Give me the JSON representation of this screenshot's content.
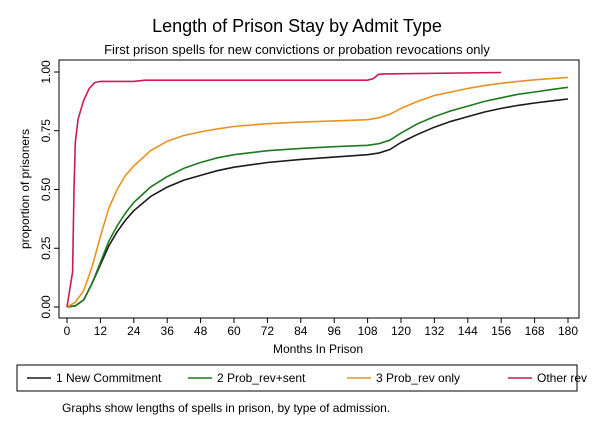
{
  "chart_data": {
    "type": "line",
    "title": "Length of Prison Stay by Admit Type",
    "subtitle": "First prison spells for new convictions or probation revocations only",
    "xlabel": "Months In Prison",
    "ylabel": "proportion of prisoners",
    "xlim": [
      0,
      180
    ],
    "ylim": [
      0,
      1
    ],
    "xticks": [
      0,
      12,
      24,
      36,
      48,
      60,
      72,
      84,
      96,
      108,
      120,
      132,
      144,
      156,
      168,
      180
    ],
    "yticks": [
      0,
      0.25,
      0.5,
      0.75,
      1
    ],
    "ytick_labels": [
      "0.00",
      "0.25",
      "0.50",
      "0.75",
      "1.00"
    ],
    "grid": false,
    "legend_position": "bottom",
    "note": "Graphs show lengths of spells in prison, by type of admission.",
    "series": [
      {
        "name": "1 New Commitment",
        "color": "#1a1a1a",
        "points": [
          [
            0,
            0
          ],
          [
            3,
            0.005
          ],
          [
            6,
            0.03
          ],
          [
            9,
            0.1
          ],
          [
            12,
            0.18
          ],
          [
            15,
            0.26
          ],
          [
            18,
            0.32
          ],
          [
            21,
            0.37
          ],
          [
            24,
            0.41
          ],
          [
            30,
            0.47
          ],
          [
            36,
            0.51
          ],
          [
            42,
            0.54
          ],
          [
            48,
            0.56
          ],
          [
            54,
            0.58
          ],
          [
            60,
            0.595
          ],
          [
            72,
            0.615
          ],
          [
            84,
            0.628
          ],
          [
            96,
            0.638
          ],
          [
            108,
            0.648
          ],
          [
            112,
            0.655
          ],
          [
            116,
            0.67
          ],
          [
            120,
            0.7
          ],
          [
            126,
            0.735
          ],
          [
            132,
            0.765
          ],
          [
            138,
            0.79
          ],
          [
            144,
            0.81
          ],
          [
            150,
            0.83
          ],
          [
            156,
            0.845
          ],
          [
            162,
            0.858
          ],
          [
            168,
            0.868
          ],
          [
            174,
            0.877
          ],
          [
            180,
            0.885
          ]
        ]
      },
      {
        "name": "2 Prob_rev+sent",
        "color": "#1f7a1f",
        "points": [
          [
            0,
            0
          ],
          [
            3,
            0.005
          ],
          [
            6,
            0.03
          ],
          [
            9,
            0.1
          ],
          [
            12,
            0.19
          ],
          [
            15,
            0.28
          ],
          [
            18,
            0.345
          ],
          [
            21,
            0.4
          ],
          [
            24,
            0.445
          ],
          [
            30,
            0.51
          ],
          [
            36,
            0.555
          ],
          [
            42,
            0.59
          ],
          [
            48,
            0.615
          ],
          [
            54,
            0.635
          ],
          [
            60,
            0.648
          ],
          [
            72,
            0.665
          ],
          [
            84,
            0.675
          ],
          [
            96,
            0.682
          ],
          [
            108,
            0.688
          ],
          [
            112,
            0.695
          ],
          [
            116,
            0.71
          ],
          [
            120,
            0.74
          ],
          [
            126,
            0.78
          ],
          [
            132,
            0.81
          ],
          [
            138,
            0.835
          ],
          [
            144,
            0.855
          ],
          [
            150,
            0.875
          ],
          [
            156,
            0.89
          ],
          [
            162,
            0.905
          ],
          [
            168,
            0.915
          ],
          [
            174,
            0.925
          ],
          [
            180,
            0.935
          ]
        ]
      },
      {
        "name": "3 Prob_rev only",
        "color": "#e8921e",
        "points": [
          [
            0,
            0
          ],
          [
            3,
            0.02
          ],
          [
            6,
            0.07
          ],
          [
            9,
            0.17
          ],
          [
            12,
            0.3
          ],
          [
            15,
            0.42
          ],
          [
            18,
            0.5
          ],
          [
            21,
            0.56
          ],
          [
            24,
            0.6
          ],
          [
            30,
            0.665
          ],
          [
            36,
            0.705
          ],
          [
            42,
            0.73
          ],
          [
            48,
            0.745
          ],
          [
            54,
            0.758
          ],
          [
            60,
            0.768
          ],
          [
            72,
            0.78
          ],
          [
            84,
            0.787
          ],
          [
            96,
            0.792
          ],
          [
            108,
            0.797
          ],
          [
            112,
            0.805
          ],
          [
            116,
            0.82
          ],
          [
            120,
            0.845
          ],
          [
            126,
            0.875
          ],
          [
            132,
            0.9
          ],
          [
            138,
            0.915
          ],
          [
            144,
            0.93
          ],
          [
            150,
            0.942
          ],
          [
            156,
            0.952
          ],
          [
            162,
            0.96
          ],
          [
            168,
            0.967
          ],
          [
            174,
            0.972
          ],
          [
            180,
            0.977
          ]
        ]
      },
      {
        "name": "Other rev",
        "color": "#cc1a52",
        "points": [
          [
            0,
            0
          ],
          [
            2,
            0.15
          ],
          [
            2.5,
            0.5
          ],
          [
            3,
            0.7
          ],
          [
            4,
            0.8
          ],
          [
            6,
            0.88
          ],
          [
            8,
            0.93
          ],
          [
            10,
            0.955
          ],
          [
            12,
            0.96
          ],
          [
            24,
            0.96
          ],
          [
            28,
            0.965
          ],
          [
            108,
            0.965
          ],
          [
            110,
            0.972
          ],
          [
            112,
            0.99
          ],
          [
            114,
            0.992
          ],
          [
            156,
            0.998
          ]
        ]
      }
    ]
  }
}
